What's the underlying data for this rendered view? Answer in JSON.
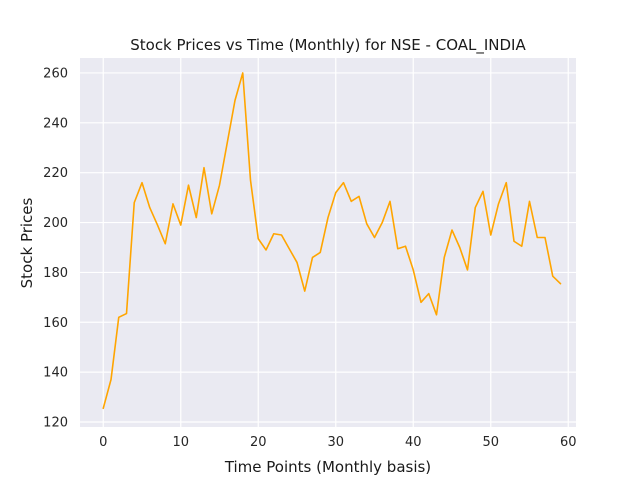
{
  "chart_data": {
    "type": "line",
    "title": "Stock Prices vs Time (Monthly) for NSE - COAL_INDIA",
    "xlabel": "Time Points (Monthly basis)",
    "ylabel": "Stock Prices",
    "xlim": [
      -3,
      61
    ],
    "ylim": [
      118,
      266
    ],
    "xticks": [
      0,
      10,
      20,
      30,
      40,
      50,
      60
    ],
    "yticks": [
      120,
      140,
      160,
      180,
      200,
      220,
      240,
      260
    ],
    "grid": true,
    "line_color": "#ffa500",
    "plot_background": "#eaeaf2",
    "series": [
      {
        "x": [
          0,
          1,
          2,
          3,
          4,
          5,
          6,
          7,
          8,
          9,
          10,
          11,
          12,
          13,
          14,
          15,
          16,
          17,
          18,
          19,
          20,
          21,
          22,
          23,
          24,
          25,
          26,
          27,
          28,
          29,
          30,
          31,
          32,
          33,
          34,
          35,
          36,
          37,
          38,
          39,
          40,
          41,
          42,
          43,
          44,
          45,
          46,
          47,
          48,
          49,
          50,
          51,
          52,
          53,
          54,
          55,
          56,
          57,
          58,
          59
        ],
        "y": [
          125.5,
          137,
          162,
          163.5,
          208,
          216,
          206,
          199,
          191.5,
          207.5,
          199,
          215,
          202,
          222,
          203.5,
          215,
          232,
          249,
          260,
          217,
          193.5,
          189,
          195.5,
          195,
          189.5,
          184,
          172.5,
          186,
          188,
          202,
          212,
          216,
          208.5,
          210.5,
          199.5,
          194,
          200,
          208.5,
          189.5,
          190.5,
          181,
          168,
          171.5,
          163,
          186,
          197,
          190,
          181,
          206,
          212.5,
          195,
          207.5,
          216,
          192.5,
          190.5,
          208.5,
          194,
          194,
          178.5,
          175.5
        ]
      }
    ]
  }
}
